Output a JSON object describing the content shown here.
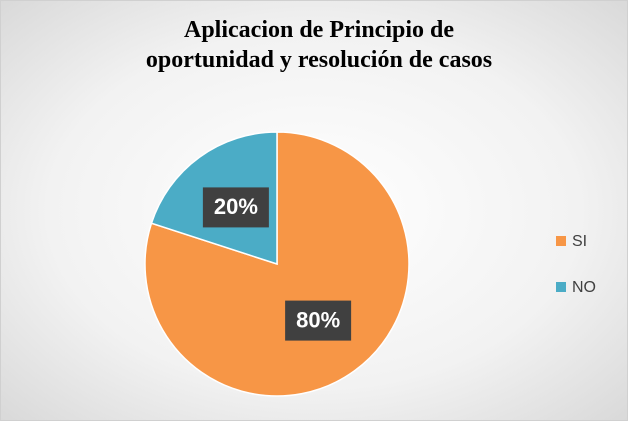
{
  "chart_data": {
    "type": "pie",
    "title": "Aplicacion de Principio de oportunidad y resolución de casos",
    "categories": [
      "SI",
      "NO"
    ],
    "values": [
      80,
      20
    ],
    "value_labels": [
      "80%",
      "20%"
    ],
    "colors": [
      "#F79646",
      "#4BACC6"
    ],
    "legend": "right"
  }
}
